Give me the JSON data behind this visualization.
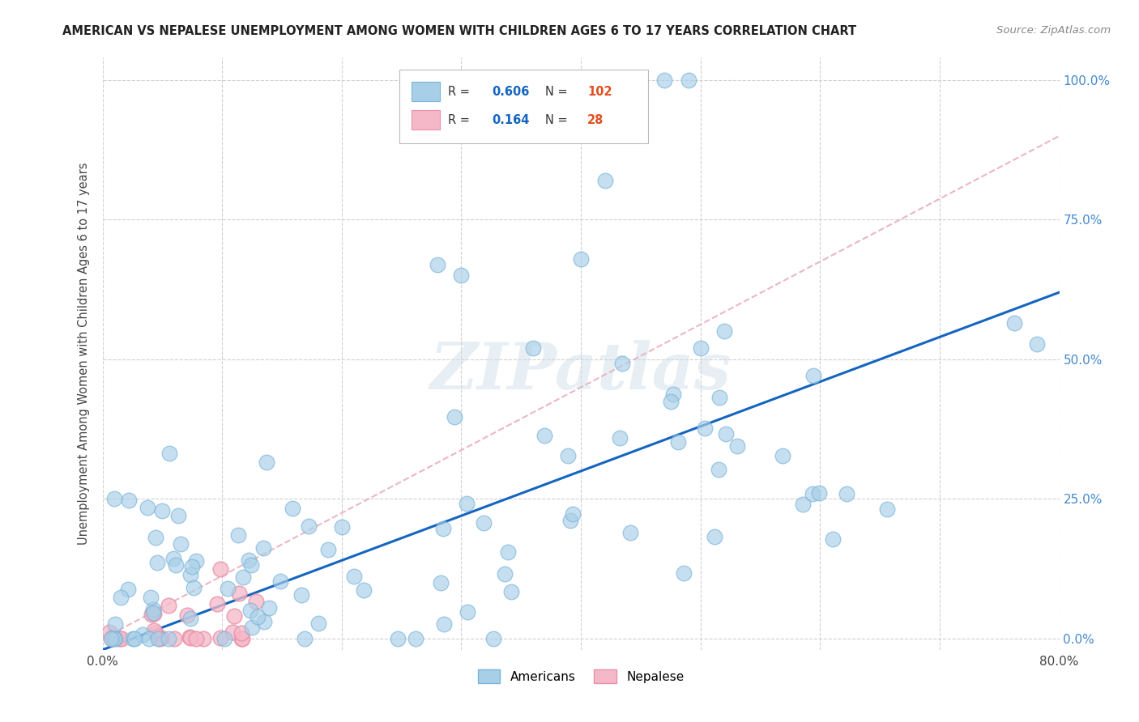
{
  "title": "AMERICAN VS NEPALESE UNEMPLOYMENT AMONG WOMEN WITH CHILDREN AGES 6 TO 17 YEARS CORRELATION CHART",
  "source": "Source: ZipAtlas.com",
  "ylabel": "Unemployment Among Women with Children Ages 6 to 17 years",
  "xlim": [
    0.0,
    0.8
  ],
  "ylim": [
    -0.02,
    1.04
  ],
  "ytick_positions": [
    0.0,
    0.25,
    0.5,
    0.75,
    1.0
  ],
  "ytick_labels": [
    "0.0%",
    "25.0%",
    "50.0%",
    "75.0%",
    "100.0%"
  ],
  "xtick_positions": [
    0.0,
    0.1,
    0.2,
    0.3,
    0.4,
    0.5,
    0.6,
    0.7,
    0.8
  ],
  "xtick_labels": [
    "0.0%",
    "",
    "",
    "",
    "",
    "",
    "",
    "",
    "80.0%"
  ],
  "american_color": "#a8cfe8",
  "american_edge_color": "#7ab4d8",
  "nepalese_color": "#f5b8c8",
  "nepalese_edge_color": "#e890a8",
  "american_line_color": "#1565c0",
  "nepalese_line_color": "#e8b0be",
  "R_american": 0.606,
  "N_american": 102,
  "R_nepalese": 0.164,
  "N_nepalese": 28,
  "watermark": "ZIPatlas",
  "background_color": "#ffffff",
  "grid_color": "#d0d0d0",
  "legend_R_color": "#1565c0",
  "legend_N_color": "#e05020",
  "title_color": "#222222",
  "source_color": "#888888",
  "ylabel_color": "#444444",
  "ytick_color": "#4488cc"
}
